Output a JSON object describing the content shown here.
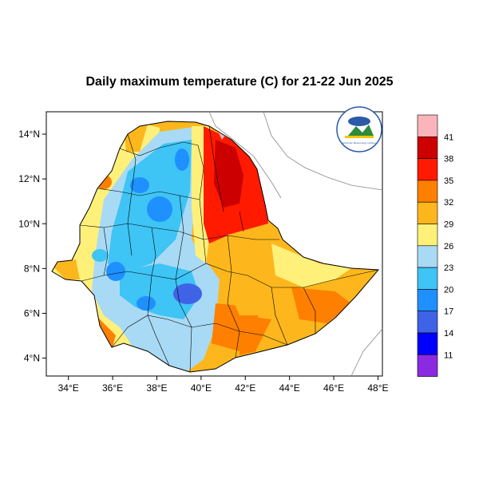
{
  "title": "Daily maximum temperature (C) for 21-22 Jun 2025",
  "map": {
    "x_ticks": [
      "34°E",
      "36°E",
      "38°E",
      "40°E",
      "42°E",
      "44°E",
      "46°E",
      "48°E"
    ],
    "y_ticks": [
      "14°N",
      "12°N",
      "10°N",
      "8°N",
      "6°N",
      "4°N"
    ],
    "lon_range": [
      33,
      48.2
    ],
    "lat_range": [
      3.2,
      15
    ]
  },
  "colorbar": {
    "labels": [
      "41",
      "38",
      "35",
      "32",
      "29",
      "26",
      "23",
      "20",
      "17",
      "14",
      "11"
    ],
    "colors": [
      "#f9b5b9",
      "#cc0000",
      "#ff1a00",
      "#ff7f00",
      "#fdb71c",
      "#fff07a",
      "#a8daf5",
      "#3ec4f5",
      "#1e90ff",
      "#3f63e6",
      "#0000ff",
      "#8a2be2"
    ]
  },
  "logo": {
    "icon": "meteorology-agency-logo",
    "text": "Ethiopian Meteorology Institute"
  }
}
